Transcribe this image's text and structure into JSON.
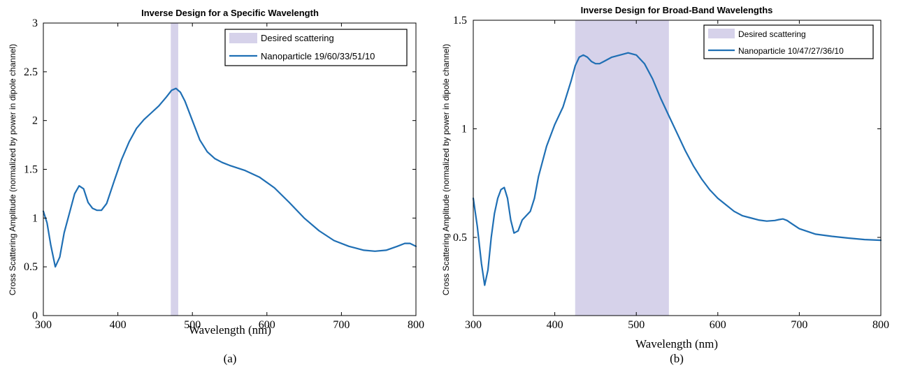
{
  "colors": {
    "series": "#1f6fb4",
    "band": "#d6d2ea"
  },
  "chart_data": [
    {
      "type": "line",
      "title": "Inverse Design for a Specific Wavelength",
      "xlabel": "Wavelength (nm)",
      "ylabel": "Cross Scattering Amplitude (normalized by power in dipole channel)",
      "caption": "(a)",
      "xlim": [
        300,
        800
      ],
      "ylim": [
        0,
        3
      ],
      "xticks": [
        300,
        400,
        500,
        600,
        700,
        800
      ],
      "yticks": [
        0,
        0.5,
        1,
        1.5,
        2,
        2.5,
        3
      ],
      "ytick_labels": [
        "0",
        "0.5",
        "1",
        "1.5",
        "2",
        "2.5",
        "3"
      ],
      "band": {
        "x0": 471,
        "x1": 481,
        "name": "Desired scattering"
      },
      "legend_position": "top-right",
      "series": [
        {
          "name": "Nanoparticle 19/60/33/51/10",
          "x": [
            300,
            305,
            310,
            316,
            322,
            328,
            335,
            342,
            348,
            354,
            360,
            366,
            372,
            378,
            385,
            395,
            405,
            415,
            425,
            435,
            445,
            455,
            465,
            472,
            478,
            484,
            490,
            500,
            510,
            520,
            530,
            540,
            550,
            570,
            590,
            610,
            630,
            650,
            670,
            690,
            710,
            730,
            745,
            760,
            775,
            785,
            792,
            800
          ],
          "y": [
            1.07,
            0.95,
            0.72,
            0.5,
            0.6,
            0.85,
            1.05,
            1.25,
            1.33,
            1.3,
            1.16,
            1.1,
            1.08,
            1.08,
            1.15,
            1.38,
            1.6,
            1.78,
            1.92,
            2.01,
            2.08,
            2.15,
            2.24,
            2.31,
            2.33,
            2.29,
            2.2,
            2.0,
            1.8,
            1.68,
            1.61,
            1.57,
            1.54,
            1.49,
            1.42,
            1.31,
            1.16,
            1.0,
            0.87,
            0.77,
            0.71,
            0.67,
            0.66,
            0.67,
            0.71,
            0.74,
            0.74,
            0.71
          ]
        }
      ]
    },
    {
      "type": "line",
      "title": "Inverse Design for Broad-Band Wavelengths",
      "xlabel": "Wavelength (nm)",
      "ylabel": "Cross Scattering Amplitude (normalized by power in dipole channel)",
      "caption": "(b)",
      "xlim": [
        300,
        800
      ],
      "ylim": [
        0.14,
        1.5
      ],
      "xticks": [
        300,
        400,
        500,
        600,
        700,
        800
      ],
      "yticks": [
        0.5,
        1,
        1.5
      ],
      "ytick_labels": [
        "0.5",
        "1",
        "1.5"
      ],
      "band": {
        "x0": 425,
        "x1": 540,
        "name": "Desired scattering"
      },
      "legend_position": "top-right",
      "series": [
        {
          "name": "Nanoparticle 10/47/27/36/10",
          "x": [
            300,
            305,
            310,
            314,
            318,
            322,
            326,
            330,
            334,
            338,
            342,
            346,
            350,
            355,
            360,
            365,
            370,
            375,
            380,
            390,
            400,
            410,
            420,
            425,
            430,
            435,
            440,
            445,
            450,
            455,
            460,
            470,
            480,
            490,
            500,
            510,
            520,
            530,
            540,
            550,
            560,
            570,
            580,
            590,
            600,
            610,
            620,
            630,
            640,
            650,
            660,
            670,
            675,
            680,
            685,
            690,
            700,
            720,
            740,
            760,
            780,
            800
          ],
          "y": [
            0.68,
            0.55,
            0.38,
            0.28,
            0.35,
            0.5,
            0.61,
            0.68,
            0.72,
            0.73,
            0.68,
            0.58,
            0.52,
            0.53,
            0.58,
            0.6,
            0.62,
            0.68,
            0.78,
            0.92,
            1.02,
            1.1,
            1.22,
            1.29,
            1.33,
            1.34,
            1.33,
            1.31,
            1.3,
            1.3,
            1.31,
            1.33,
            1.34,
            1.35,
            1.34,
            1.3,
            1.23,
            1.14,
            1.06,
            0.98,
            0.9,
            0.83,
            0.77,
            0.72,
            0.68,
            0.65,
            0.62,
            0.6,
            0.59,
            0.58,
            0.575,
            0.578,
            0.582,
            0.585,
            0.578,
            0.565,
            0.54,
            0.515,
            0.505,
            0.497,
            0.49,
            0.487
          ]
        }
      ]
    }
  ]
}
